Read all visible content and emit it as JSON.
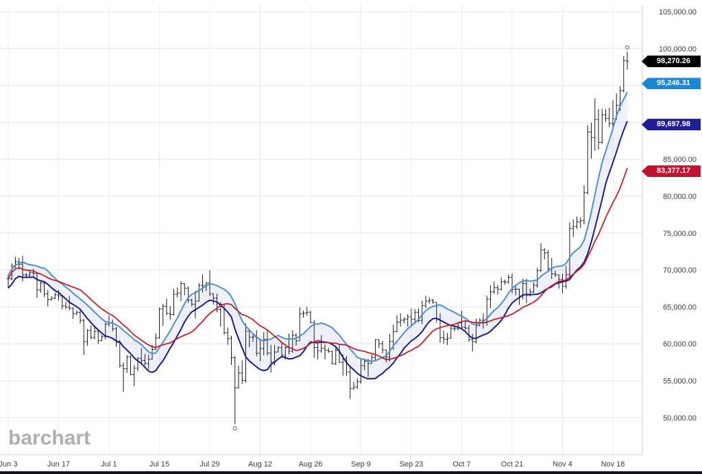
{
  "branding": {
    "logo_text": "barchart"
  },
  "chart_data": {
    "type": "ohlc",
    "description": "Daily OHLC price chart (Bitcoin-style instrument) with high/low moving-average band and longer moving average overlay",
    "x_tick_labels": [
      "Jun 3",
      "Jun 17",
      "Jul 1",
      "Jul 15",
      "Jul 29",
      "Aug 12",
      "Aug 26",
      "Sep 9",
      "Sep 23",
      "Oct 7",
      "Oct 21",
      "Nov 4",
      "Nov 18"
    ],
    "x_tick_day_index": [
      0,
      14,
      28,
      42,
      56,
      70,
      84,
      98,
      112,
      126,
      140,
      154,
      168
    ],
    "y_ticks": [
      50000,
      55000,
      60000,
      65000,
      70000,
      75000,
      80000,
      85000,
      90000,
      95000,
      100000,
      105000
    ],
    "y_tick_labels": [
      "50,000.00",
      "55,000.00",
      "60,000.00",
      "65,000.00",
      "70,000.00",
      "75,000.00",
      "80,000.00",
      "85,000.00",
      "90,000.00",
      "95,000.00",
      "100,000.00",
      "105,000.00"
    ],
    "grid": true,
    "bar_color": "#1a1a1a",
    "open_equals_prior_close": true,
    "ohlc_hlc": [
      [
        69300,
        67550,
        68800
      ],
      [
        70900,
        68620,
        70550
      ],
      [
        71750,
        70300,
        71100
      ],
      [
        71660,
        70100,
        70780
      ],
      [
        71950,
        68450,
        69340
      ],
      [
        69600,
        68970,
        69310
      ],
      [
        69850,
        69070,
        69640
      ],
      [
        70150,
        69150,
        69540
      ],
      [
        69590,
        66220,
        67310
      ],
      [
        68540,
        66900,
        68240
      ],
      [
        68440,
        66310,
        66770
      ],
      [
        67290,
        65050,
        66010
      ],
      [
        66430,
        65850,
        66190
      ],
      [
        66930,
        66050,
        66630
      ],
      [
        67270,
        65860,
        66500
      ],
      [
        66560,
        64660,
        65140
      ],
      [
        65700,
        64700,
        64960
      ],
      [
        66480,
        64550,
        64830
      ],
      [
        64960,
        63380,
        64090
      ],
      [
        64540,
        63900,
        64260
      ],
      [
        64480,
        62760,
        63180
      ],
      [
        63350,
        58470,
        60280
      ],
      [
        62000,
        59750,
        61800
      ],
      [
        62470,
        60600,
        60850
      ],
      [
        62390,
        60620,
        61680
      ],
      [
        61960,
        59980,
        60420
      ],
      [
        61190,
        60350,
        60970
      ],
      [
        62870,
        60600,
        62680
      ],
      [
        63830,
        62340,
        62900
      ],
      [
        63270,
        61670,
        62030
      ],
      [
        62250,
        59580,
        60170
      ],
      [
        60470,
        56770,
        57040
      ],
      [
        57500,
        53500,
        56620
      ],
      [
        58460,
        56080,
        58240
      ],
      [
        58400,
        55720,
        55850
      ],
      [
        57100,
        54260,
        56700
      ],
      [
        58240,
        56290,
        58010
      ],
      [
        59430,
        57150,
        57740
      ],
      [
        58640,
        57040,
        57340
      ],
      [
        58530,
        56550,
        57900
      ],
      [
        59850,
        57850,
        59230
      ],
      [
        61440,
        59190,
        60790
      ],
      [
        64900,
        60700,
        64740
      ],
      [
        65390,
        62400,
        65100
      ],
      [
        66130,
        63880,
        64120
      ],
      [
        65120,
        63240,
        63970
      ],
      [
        67440,
        63850,
        66690
      ],
      [
        67620,
        66250,
        66880
      ],
      [
        68480,
        65780,
        68150
      ],
      [
        68200,
        66560,
        67530
      ],
      [
        67750,
        65550,
        65930
      ],
      [
        66100,
        65080,
        65370
      ],
      [
        67200,
        63450,
        65780
      ],
      [
        68240,
        65730,
        67910
      ],
      [
        69400,
        66970,
        67900
      ],
      [
        68330,
        67140,
        68260
      ],
      [
        69950,
        66450,
        66780
      ],
      [
        66830,
        65320,
        66190
      ],
      [
        66800,
        64270,
        64620
      ],
      [
        65660,
        62310,
        65350
      ],
      [
        65460,
        61230,
        61500
      ],
      [
        62200,
        59850,
        60700
      ],
      [
        61110,
        57120,
        58120
      ],
      [
        58330,
        49110,
        54020
      ],
      [
        57050,
        53960,
        56030
      ],
      [
        57740,
        54560,
        55030
      ],
      [
        62750,
        54730,
        61710
      ],
      [
        61760,
        59540,
        60880
      ],
      [
        61480,
        60240,
        60950
      ],
      [
        61860,
        58330,
        58720
      ],
      [
        60700,
        57640,
        59350
      ],
      [
        61590,
        58430,
        60600
      ],
      [
        61800,
        58440,
        58740
      ],
      [
        59850,
        56110,
        57550
      ],
      [
        59850,
        57100,
        58890
      ],
      [
        59680,
        58830,
        59480
      ],
      [
        60250,
        58130,
        58440
      ],
      [
        59620,
        57880,
        59490
      ],
      [
        61400,
        58560,
        59010
      ],
      [
        61830,
        58790,
        61170
      ],
      [
        61420,
        59760,
        60380
      ],
      [
        64950,
        60390,
        64090
      ],
      [
        64500,
        63530,
        64180
      ],
      [
        65000,
        63830,
        64280
      ],
      [
        64480,
        62800,
        62880
      ],
      [
        63210,
        58100,
        59500
      ],
      [
        60230,
        57890,
        59060
      ],
      [
        61180,
        58780,
        59390
      ],
      [
        59900,
        57860,
        59120
      ],
      [
        59450,
        58760,
        58970
      ],
      [
        59070,
        57210,
        57300
      ],
      [
        59430,
        57130,
        59110
      ],
      [
        59810,
        57430,
        57490
      ],
      [
        58520,
        55670,
        57970
      ],
      [
        58330,
        55640,
        56180
      ],
      [
        56990,
        52550,
        53950
      ],
      [
        54830,
        53740,
        54160
      ],
      [
        55320,
        53860,
        54870
      ],
      [
        58040,
        54600,
        57040
      ],
      [
        58030,
        56420,
        57650
      ],
      [
        57980,
        55550,
        57340
      ],
      [
        58580,
        57330,
        58130
      ],
      [
        60640,
        57640,
        60570
      ],
      [
        60610,
        59430,
        60010
      ],
      [
        60390,
        58690,
        59180
      ],
      [
        59200,
        57490,
        58210
      ],
      [
        61330,
        57620,
        60310
      ],
      [
        62600,
        59170,
        61650
      ],
      [
        63880,
        61550,
        62940
      ],
      [
        64130,
        62350,
        63200
      ],
      [
        63560,
        62760,
        63350
      ],
      [
        64000,
        62350,
        63650
      ],
      [
        64750,
        62540,
        63340
      ],
      [
        64700,
        62700,
        64260
      ],
      [
        64820,
        62940,
        63150
      ],
      [
        65830,
        62670,
        65180
      ],
      [
        66500,
        64850,
        65790
      ],
      [
        66260,
        65440,
        65890
      ],
      [
        66080,
        65430,
        65630
      ],
      [
        65630,
        62860,
        63330
      ],
      [
        64130,
        60150,
        60840
      ],
      [
        61780,
        60000,
        60630
      ],
      [
        61470,
        59830,
        60750
      ],
      [
        62480,
        60750,
        62080
      ],
      [
        62370,
        61690,
        62060
      ],
      [
        62980,
        61790,
        62820
      ],
      [
        64480,
        62120,
        62240
      ],
      [
        63210,
        61870,
        62130
      ],
      [
        62550,
        60310,
        60580
      ],
      [
        61340,
        58950,
        60280
      ],
      [
        63400,
        60050,
        62450
      ],
      [
        63460,
        62450,
        63190
      ],
      [
        64110,
        62050,
        62850
      ],
      [
        66500,
        62450,
        66050
      ],
      [
        67950,
        64850,
        67040
      ],
      [
        68420,
        66750,
        67610
      ],
      [
        67940,
        66650,
        67400
      ],
      [
        68980,
        67190,
        68420
      ],
      [
        68700,
        68010,
        68370
      ],
      [
        69400,
        68110,
        69000
      ],
      [
        69520,
        66820,
        67370
      ],
      [
        67800,
        66560,
        67410
      ],
      [
        67470,
        65260,
        66430
      ],
      [
        68850,
        66000,
        68160
      ],
      [
        68810,
        65500,
        66600
      ],
      [
        67450,
        66410,
        67010
      ],
      [
        68330,
        66880,
        67920
      ],
      [
        70290,
        67620,
        69910
      ],
      [
        73620,
        69730,
        72720
      ],
      [
        72960,
        71440,
        72330
      ],
      [
        72700,
        69690,
        70210
      ],
      [
        71630,
        68820,
        69480
      ],
      [
        69920,
        69060,
        69330
      ],
      [
        69390,
        67480,
        68740
      ],
      [
        69500,
        66830,
        67810
      ],
      [
        70560,
        67480,
        69370
      ],
      [
        76460,
        69000,
        75640
      ],
      [
        76850,
        74450,
        75900
      ],
      [
        77240,
        75570,
        76500
      ],
      [
        77130,
        75720,
        76680
      ],
      [
        81470,
        76170,
        80470
      ],
      [
        89600,
        80220,
        88700
      ],
      [
        89940,
        85100,
        87950
      ],
      [
        93270,
        86140,
        90400
      ],
      [
        91790,
        86330,
        87300
      ],
      [
        91850,
        87070,
        91000
      ],
      [
        91780,
        90100,
        90560
      ],
      [
        91990,
        89370,
        89840
      ],
      [
        92980,
        89370,
        90500
      ],
      [
        93910,
        90370,
        92310
      ],
      [
        94900,
        91530,
        94290
      ],
      [
        98980,
        94040,
        98380
      ],
      [
        99590,
        97170,
        98270
      ]
    ],
    "overlays": {
      "band_upper": {
        "name": "upper-band",
        "type": "sma_of_highs",
        "window": 10,
        "color": "#4a90d9",
        "last_value": 95246.31
      },
      "band_lower": {
        "name": "lower-band",
        "type": "sma_of_lows",
        "window": 10,
        "color": "#1b1b8f",
        "last_value": 89697.98
      },
      "red_ma": {
        "name": "red-moving-average",
        "type": "sma_of_closes",
        "window": 21,
        "color": "#cc1c26",
        "last_value": 83377.17
      },
      "band_fill_color": "rgba(90,110,220,0.10)"
    },
    "price_flags": [
      {
        "label": "98,270.26",
        "value": 98270.26,
        "bg": "#000000",
        "role": "last-price"
      },
      {
        "label": "95,246.31",
        "value": 95246.31,
        "bg": "#1a87d9",
        "role": "upper-band"
      },
      {
        "label": "89,697.98",
        "value": 89697.98,
        "bg": "#1f1f93",
        "role": "lower-band"
      },
      {
        "label": "83,377.17",
        "value": 83377.17,
        "bg": "#c1122f",
        "role": "red-ma"
      }
    ],
    "annotations": [
      {
        "type": "circle-marker",
        "day": 172,
        "price": 99590,
        "position": "above"
      },
      {
        "type": "circle-marker",
        "day": 63,
        "price": 49110,
        "position": "below"
      }
    ]
  }
}
